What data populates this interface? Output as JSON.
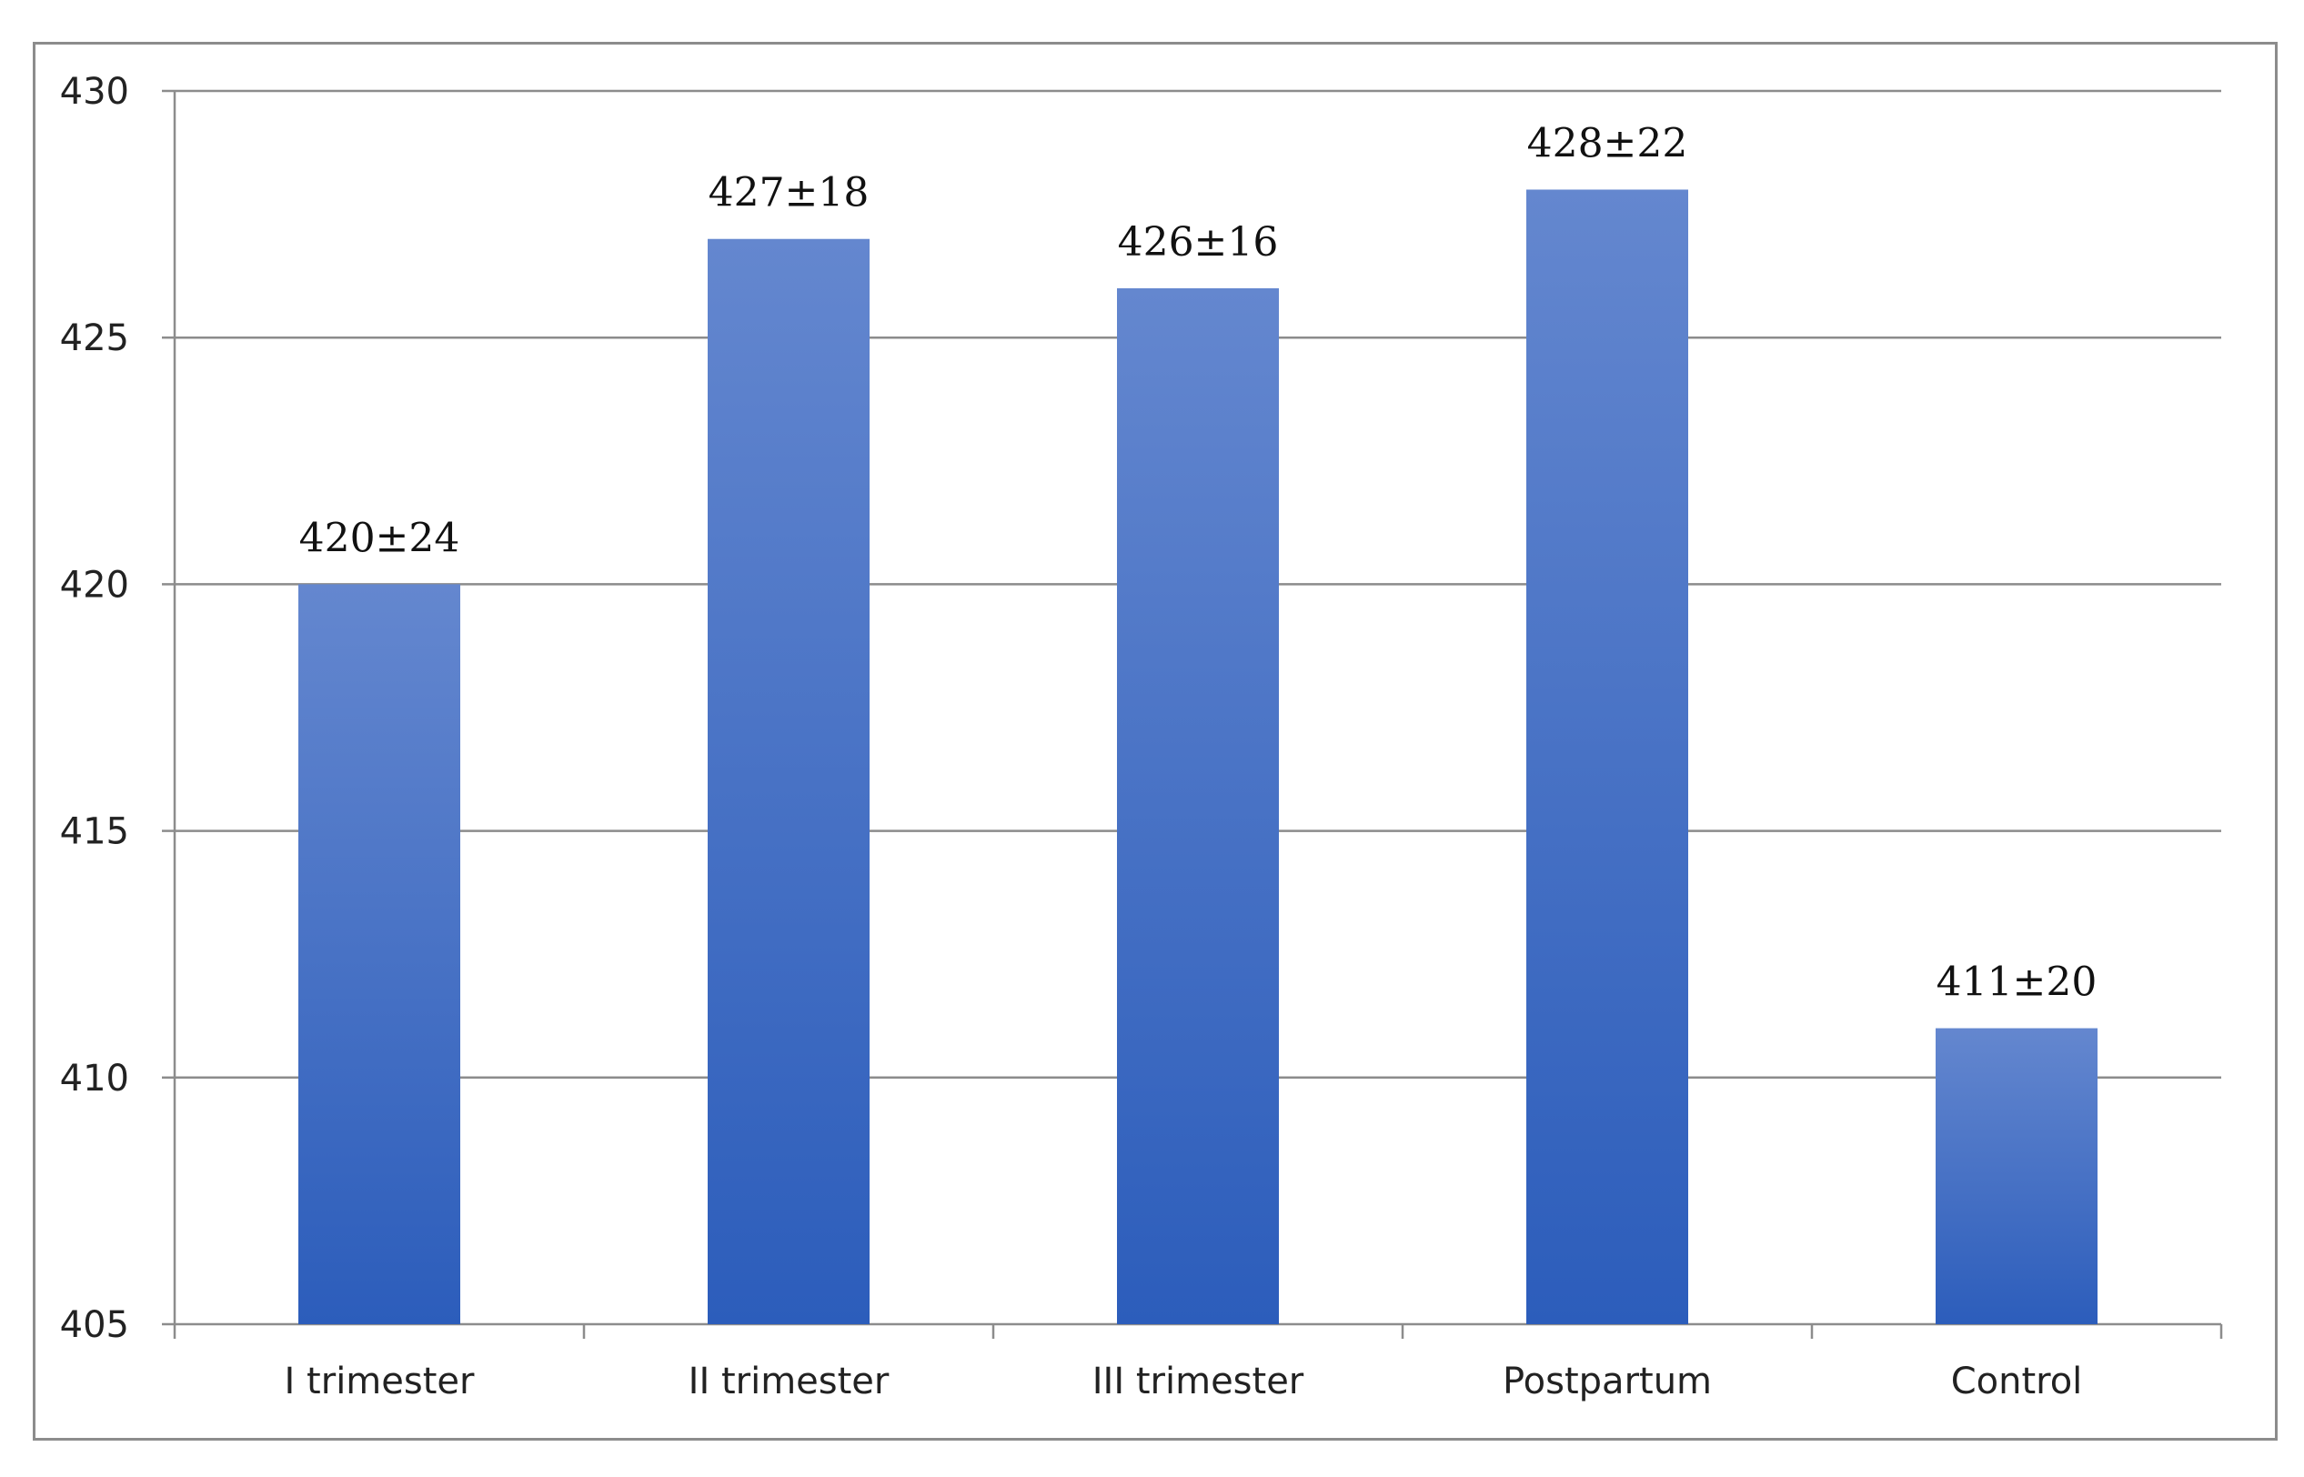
{
  "chart_data": {
    "type": "bar",
    "categories": [
      "I trimester",
      "II trimester",
      "III trimester",
      "Postpartum",
      "Control"
    ],
    "values": [
      420,
      427,
      426,
      428,
      411
    ],
    "data_labels": [
      "420±24",
      "427±18",
      "426±16",
      "428±22",
      "411±20"
    ],
    "title": "",
    "xlabel": "",
    "ylabel": "",
    "ylim": [
      405,
      430
    ],
    "yticks": [
      405,
      410,
      415,
      420,
      425,
      430
    ],
    "grid": true,
    "legend": "none",
    "colors": {
      "bar_top": "#6487cf",
      "bar_bottom": "#2c5dbb",
      "grid": "#8c8c8c",
      "frame": "#8c8c8c",
      "text": "#222222"
    }
  }
}
